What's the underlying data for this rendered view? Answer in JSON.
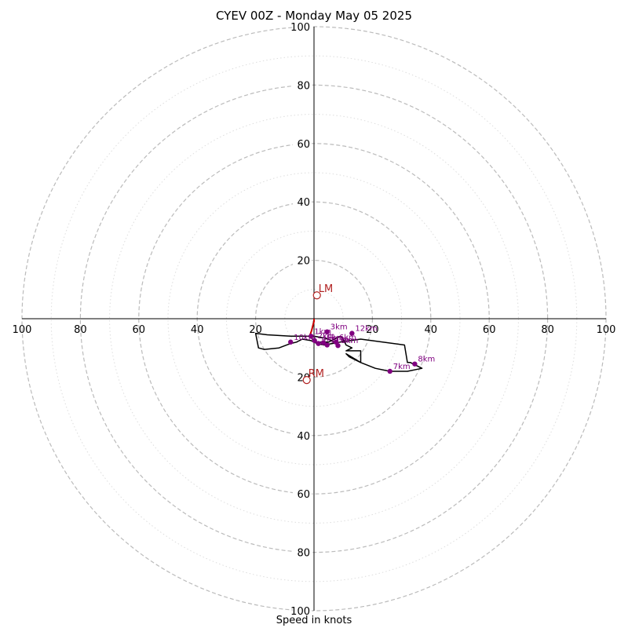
{
  "chart_data": {
    "type": "hodograph",
    "title": "CYEV 00Z - Monday May 05 2025",
    "xlabel": "Speed in knots",
    "rmax": 100,
    "ring_labels": [
      "20",
      "40",
      "60",
      "80",
      "100"
    ],
    "ring_values": [
      20,
      40,
      60,
      80,
      100
    ],
    "minor_ring_values": [
      10,
      30,
      50,
      70,
      90
    ],
    "grid": true,
    "colors": {
      "trace": "#000000",
      "low_level_trace": "#cc0000",
      "height_marker": "#800080",
      "storm_motion": "#b22222",
      "major_ring": "#bbbbbb",
      "minor_ring": "#dddddd"
    },
    "trace_u": [
      0,
      -0.3,
      -0.8,
      -1.5,
      0.5,
      3,
      5,
      7,
      8,
      9,
      10,
      11,
      13,
      11,
      16,
      16,
      11,
      12,
      16,
      21,
      26,
      32,
      37,
      33,
      32,
      31,
      16,
      9,
      3.5,
      1,
      -1,
      -4,
      -6,
      -8,
      -12,
      -17,
      -19,
      -20,
      -16,
      -8,
      -5,
      -2,
      0,
      3,
      5,
      7,
      8
    ],
    "trace_v": [
      0,
      -2,
      -4,
      -6,
      -8,
      -8,
      -8,
      -7,
      -6.5,
      -6,
      -7,
      -9,
      -10,
      -11,
      -11,
      -15,
      -12,
      -13,
      -15,
      -17,
      -18,
      -18,
      -17,
      -15,
      -15,
      -9,
      -7,
      -8,
      -9,
      -8.5,
      -7.5,
      -7,
      -8,
      -8.5,
      -10,
      -10.5,
      -10,
      -5,
      -5.5,
      -6,
      -6,
      -6,
      -6,
      -6.5,
      -7,
      -8,
      -9
    ],
    "low_level_u": [
      0,
      0,
      -0.3,
      -0.8,
      -1.5
    ],
    "low_level_v": [
      0,
      -1,
      -2,
      -4,
      -6
    ],
    "heights": [
      {
        "label": "1km",
        "u": -1.0,
        "v": -6
      },
      {
        "label": "2km",
        "u": 0.2,
        "v": -7.5
      },
      {
        "label": "3km",
        "u": 4.5,
        "v": -4.5
      },
      {
        "label": "4km",
        "u": 1.5,
        "v": -8.5
      },
      {
        "label": "5km",
        "u": 3.2,
        "v": -8.2
      },
      {
        "label": "6km",
        "u": 7.5,
        "v": -8.0
      },
      {
        "label": "7km",
        "u": 26,
        "v": -18
      },
      {
        "label": "8km",
        "u": 34.5,
        "v": -15.5
      },
      {
        "label": "9km",
        "u": 8.2,
        "v": -9.2
      },
      {
        "label": "10km",
        "u": -8,
        "v": -8
      },
      {
        "label": "11km",
        "u": 4.5,
        "v": -9
      },
      {
        "label": "12km",
        "u": 13,
        "v": -5
      }
    ],
    "storm_motion": [
      {
        "label": "LM",
        "u": 1,
        "v": 8
      },
      {
        "label": "RM",
        "u": -2.5,
        "v": -21
      }
    ]
  }
}
